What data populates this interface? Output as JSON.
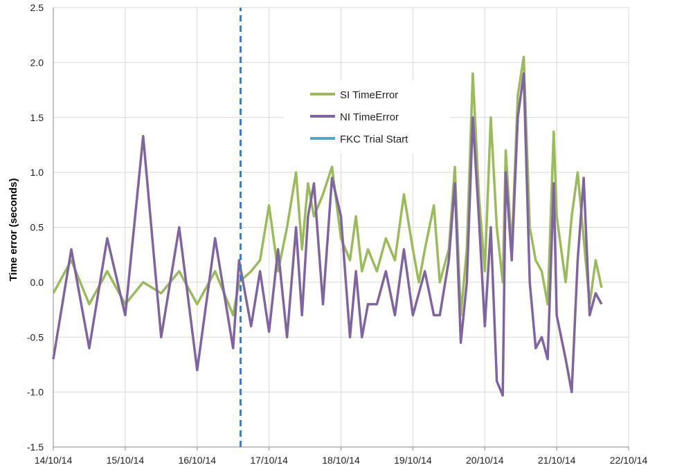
{
  "chart_data": {
    "type": "line",
    "title": "",
    "xlabel": "",
    "ylabel": "Time error (seconds)",
    "ylim": [
      -1.5,
      2.5
    ],
    "yticks": [
      "-1.5",
      "-1.0",
      "-0.5",
      "0.0",
      "0.5",
      "1.0",
      "1.5",
      "2.0",
      "2.5"
    ],
    "xlim": [
      "2014-10-14",
      "2014-10-22"
    ],
    "xticks": [
      "14/10/14",
      "15/10/14",
      "16/10/14",
      "17/10/14",
      "18/10/14",
      "19/10/14",
      "20/10/14",
      "21/10/14",
      "22/10/14"
    ],
    "grid": true,
    "legend": "center-top",
    "series": [
      {
        "name": "SI TimeError",
        "color": "#9bbb59",
        "x": [
          "2014-10-14 00:00",
          "2014-10-14 06:00",
          "2014-10-14 12:00",
          "2014-10-14 18:00",
          "2014-10-15 00:00",
          "2014-10-15 06:00",
          "2014-10-15 12:00",
          "2014-10-15 18:00",
          "2014-10-16 00:00",
          "2014-10-16 06:00",
          "2014-10-16 12:00",
          "2014-10-16 14:00",
          "2014-10-16 18:00",
          "2014-10-16 21:00",
          "2014-10-17 00:00",
          "2014-10-17 03:00",
          "2014-10-17 06:00",
          "2014-10-17 09:00",
          "2014-10-17 11:00",
          "2014-10-17 13:00",
          "2014-10-17 15:00",
          "2014-10-17 18:00",
          "2014-10-17 21:00",
          "2014-10-18 00:00",
          "2014-10-18 03:00",
          "2014-10-18 05:00",
          "2014-10-18 07:00",
          "2014-10-18 09:00",
          "2014-10-18 12:00",
          "2014-10-18 15:00",
          "2014-10-18 18:00",
          "2014-10-18 21:00",
          "2014-10-19 00:00",
          "2014-10-19 02:00",
          "2014-10-19 04:00",
          "2014-10-19 07:00",
          "2014-10-19 09:00",
          "2014-10-19 12:00",
          "2014-10-19 14:00",
          "2014-10-19 16:00",
          "2014-10-19 18:00",
          "2014-10-19 20:00",
          "2014-10-19 22:00",
          "2014-10-20 00:00",
          "2014-10-20 02:00",
          "2014-10-20 04:00",
          "2014-10-20 06:00",
          "2014-10-20 07:00",
          "2014-10-20 09:00",
          "2014-10-20 11:00",
          "2014-10-20 13:00",
          "2014-10-20 15:00",
          "2014-10-20 17:00",
          "2014-10-20 19:00",
          "2014-10-20 21:00",
          "2014-10-20 23:00",
          "2014-10-21 00:00",
          "2014-10-21 03:00",
          "2014-10-21 05:00",
          "2014-10-21 07:00",
          "2014-10-21 09:00",
          "2014-10-21 11:00",
          "2014-10-21 13:00",
          "2014-10-21 15:00"
        ],
        "y": [
          -0.1,
          0.2,
          -0.2,
          0.1,
          -0.2,
          0.0,
          -0.1,
          0.1,
          -0.2,
          0.1,
          -0.3,
          0.0,
          0.1,
          0.2,
          0.7,
          0.1,
          0.5,
          1.0,
          0.3,
          0.9,
          0.6,
          0.8,
          1.05,
          0.4,
          0.2,
          0.6,
          0.1,
          0.3,
          0.1,
          0.4,
          0.2,
          0.8,
          0.3,
          0.0,
          0.3,
          0.7,
          0.0,
          0.3,
          1.05,
          -0.3,
          0.3,
          1.9,
          0.8,
          0.1,
          1.5,
          0.5,
          0.0,
          1.2,
          0.3,
          1.7,
          2.05,
          0.5,
          0.2,
          0.1,
          -0.2,
          1.37,
          0.6,
          0.0,
          0.6,
          1.0,
          0.4,
          -0.2,
          0.2,
          -0.05
        ]
      },
      {
        "name": "NI TimeError",
        "color": "#8064a2",
        "x": [
          "2014-10-14 00:00",
          "2014-10-14 06:00",
          "2014-10-14 12:00",
          "2014-10-14 18:00",
          "2014-10-15 00:00",
          "2014-10-15 06:00",
          "2014-10-15 12:00",
          "2014-10-15 18:00",
          "2014-10-16 00:00",
          "2014-10-16 06:00",
          "2014-10-16 12:00",
          "2014-10-16 14:00",
          "2014-10-16 18:00",
          "2014-10-16 21:00",
          "2014-10-17 00:00",
          "2014-10-17 03:00",
          "2014-10-17 06:00",
          "2014-10-17 09:00",
          "2014-10-17 11:00",
          "2014-10-17 13:00",
          "2014-10-17 15:00",
          "2014-10-17 18:00",
          "2014-10-17 21:00",
          "2014-10-18 00:00",
          "2014-10-18 03:00",
          "2014-10-18 05:00",
          "2014-10-18 07:00",
          "2014-10-18 09:00",
          "2014-10-18 12:00",
          "2014-10-18 15:00",
          "2014-10-18 18:00",
          "2014-10-18 21:00",
          "2014-10-19 00:00",
          "2014-10-19 02:00",
          "2014-10-19 04:00",
          "2014-10-19 07:00",
          "2014-10-19 09:00",
          "2014-10-19 12:00",
          "2014-10-19 14:00",
          "2014-10-19 16:00",
          "2014-10-19 18:00",
          "2014-10-19 20:00",
          "2014-10-19 22:00",
          "2014-10-20 00:00",
          "2014-10-20 02:00",
          "2014-10-20 04:00",
          "2014-10-20 06:00",
          "2014-10-20 07:00",
          "2014-10-20 09:00",
          "2014-10-20 11:00",
          "2014-10-20 13:00",
          "2014-10-20 15:00",
          "2014-10-20 17:00",
          "2014-10-20 19:00",
          "2014-10-20 21:00",
          "2014-10-20 23:00",
          "2014-10-21 00:00",
          "2014-10-21 03:00",
          "2014-10-21 05:00",
          "2014-10-21 07:00",
          "2014-10-21 09:00",
          "2014-10-21 11:00",
          "2014-10-21 13:00",
          "2014-10-21 15:00"
        ],
        "y": [
          -0.7,
          0.3,
          -0.6,
          0.4,
          -0.3,
          1.33,
          -0.5,
          0.5,
          -0.8,
          0.4,
          -0.6,
          0.2,
          -0.4,
          0.1,
          -0.45,
          0.3,
          -0.5,
          0.5,
          -0.3,
          0.6,
          0.9,
          -0.2,
          0.95,
          0.6,
          -0.5,
          0.1,
          -0.5,
          -0.2,
          -0.2,
          0.1,
          -0.3,
          0.3,
          -0.3,
          -0.1,
          0.1,
          -0.3,
          -0.3,
          0.2,
          0.9,
          -0.55,
          0.0,
          1.5,
          0.6,
          -0.4,
          0.5,
          -0.9,
          -1.03,
          1.0,
          0.2,
          1.5,
          1.9,
          0.0,
          -0.6,
          -0.5,
          -0.7,
          0.9,
          -0.3,
          -0.7,
          -1.0,
          0.2,
          0.95,
          -0.3,
          -0.1,
          -0.2
        ]
      },
      {
        "name": "FKC Trial Start",
        "color": "#4bacc6",
        "line_color": "#3f7fbf",
        "style": "dashed",
        "x": [
          "2014-10-16 14:30",
          "2014-10-16 14:30"
        ],
        "y": [
          -1.5,
          2.5
        ]
      }
    ]
  }
}
